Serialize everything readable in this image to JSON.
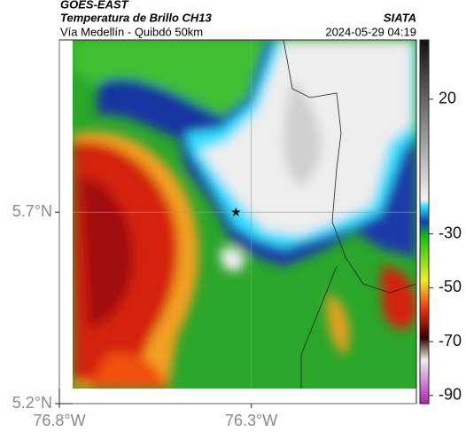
{
  "header": {
    "title": "GOES-EAST",
    "subtitle": "Temperatura de Brillo CH13",
    "route": "Vía Medellín - Quibdó 50km",
    "source": "SIATA",
    "timestamp": "2024-05-29 04:19"
  },
  "map": {
    "xlim": [
      -76.8,
      -75.87
    ],
    "ylim": [
      5.2,
      6.15
    ],
    "xticks": [
      {
        "value": -76.8,
        "label": "76.8°W"
      },
      {
        "value": -76.3,
        "label": "76.3°W"
      }
    ],
    "yticks": [
      {
        "value": 5.7,
        "label": "5.7°N"
      },
      {
        "value": 5.2,
        "label": "5.2°N"
      }
    ],
    "grid": true,
    "station": {
      "lon": -76.34,
      "lat": 5.7
    }
  },
  "colorbar": {
    "lim": [
      -93,
      42
    ],
    "ticks": [
      20,
      -30,
      -50,
      -70,
      -90
    ]
  }
}
